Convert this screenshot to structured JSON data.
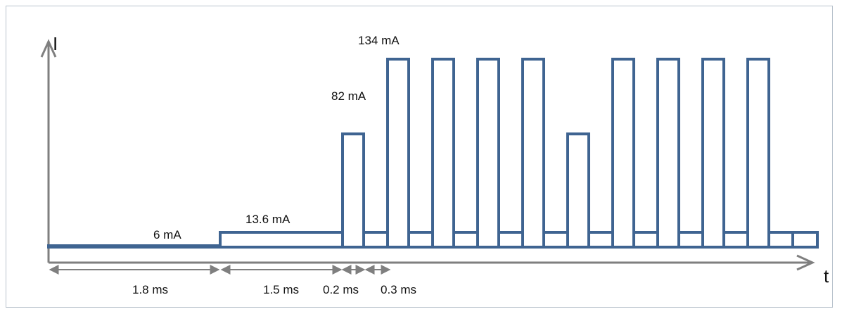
{
  "axes": {
    "y_label": "I",
    "x_label": "t"
  },
  "current_labels": {
    "base_level": "6 mA",
    "step_level": "13.6 mA",
    "short_pulse": "82 mA",
    "tall_pulse": "134 mA"
  },
  "duration_labels": {
    "first": "1.8 ms",
    "second": "1.5 ms",
    "third": "0.2 ms",
    "fourth": "0.3 ms"
  },
  "colors": {
    "waveform": "#3f6491",
    "axes": "#7f7f7f",
    "dimension_arrows": "#7f7f7f",
    "border": "#b9c3cd"
  },
  "chart_data": {
    "type": "line",
    "ylabel": "I",
    "xlabel": "t",
    "segments": [
      {
        "label": "6 mA",
        "current_mA": 6,
        "duration_ms": 1.8
      },
      {
        "label": "13.6 mA",
        "current_mA": 13.6,
        "duration_ms": 1.5
      }
    ],
    "pulse_sequence_mA": [
      82,
      134,
      134,
      134,
      134,
      82,
      134,
      134,
      134,
      134
    ],
    "pulse_width_ms": 0.2,
    "gap_width_ms": 0.3,
    "baseline_between_pulses_mA": 13.6
  }
}
